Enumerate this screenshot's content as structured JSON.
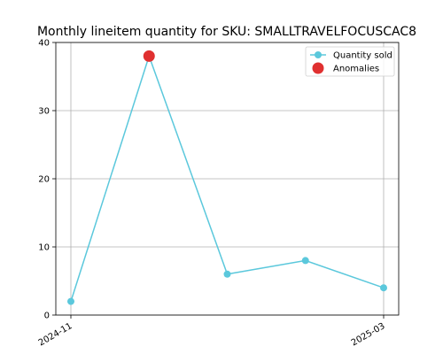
{
  "chart_data": {
    "type": "line",
    "title": "Monthly lineitem quantity for SKU: SMALLTRAVELFOCUSCAC8",
    "xlabel": "",
    "ylabel": "",
    "x": [
      "2024-11",
      "2024-12",
      "2025-01",
      "2025-02",
      "2025-03"
    ],
    "x_tick_labels": [
      "2024-11",
      "2025-03"
    ],
    "y_ticks": [
      0,
      10,
      20,
      30,
      40
    ],
    "ylim": [
      0,
      40
    ],
    "grid": true,
    "legend_position": "top-right",
    "series": [
      {
        "name": "Quantity sold",
        "values": [
          2,
          38,
          6,
          8,
          4
        ],
        "color": "#5bc8dc",
        "marker": "circle"
      },
      {
        "name": "Anomalies",
        "points": [
          {
            "x": "2024-12",
            "y": 38
          }
        ],
        "color": "#e03030",
        "marker": "circle"
      }
    ]
  }
}
